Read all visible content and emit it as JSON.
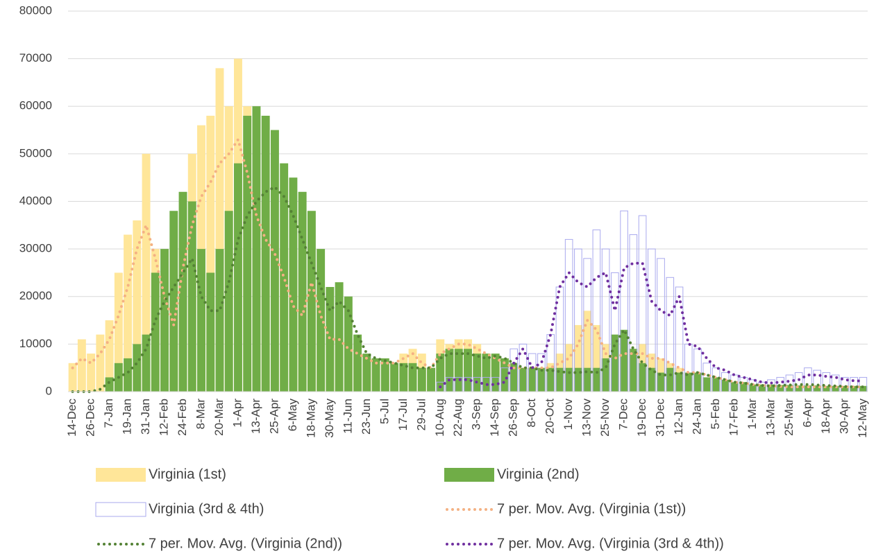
{
  "chart_data": {
    "type": "bar",
    "categories": [
      "14-Dec",
      null,
      "26-Dec",
      null,
      "7-Jan",
      null,
      "19-Jan",
      null,
      "31-Jan",
      null,
      "12-Feb",
      null,
      "24-Feb",
      null,
      "8-Mar",
      null,
      "20-Mar",
      null,
      "1-Apr",
      null,
      "13-Apr",
      null,
      "25-Apr",
      null,
      "6-May",
      null,
      "18-May",
      null,
      "30-May",
      null,
      "11-Jun",
      null,
      "23-Jun",
      null,
      "5-Jul",
      null,
      "17-Jul",
      null,
      "29-Jul",
      null,
      "10-Aug",
      null,
      "22-Aug",
      null,
      "3-Sep",
      null,
      "14-Sep",
      null,
      "26-Sep",
      null,
      "8-Oct",
      null,
      "20-Oct",
      null,
      "1-Nov",
      null,
      "13-Nov",
      null,
      "25-Nov",
      null,
      "7-Dec",
      null,
      "19-Dec",
      null,
      "31-Dec",
      null,
      "12-Jan",
      null,
      "24-Jan",
      null,
      "5-Feb",
      null,
      "17-Feb",
      null,
      "1-Mar",
      null,
      "13-Mar",
      null,
      "25-Mar",
      null,
      "6-Apr",
      null,
      "18-Apr",
      null,
      "30-Apr",
      null,
      "12-May"
    ],
    "series": [
      {
        "name": "Virginia (1st)",
        "kind": "bar",
        "color": "#ffe699",
        "values": [
          6000,
          11000,
          8000,
          12000,
          15000,
          25000,
          33000,
          36000,
          50000,
          30000,
          25000,
          18000,
          35000,
          50000,
          56000,
          58000,
          68000,
          60000,
          70000,
          60000,
          45000,
          40000,
          35000,
          30000,
          25000,
          20000,
          18000,
          15000,
          12000,
          11000,
          10000,
          8000,
          7000,
          6000,
          6000,
          6000,
          8000,
          9000,
          8000,
          5000,
          11000,
          10000,
          11000,
          11000,
          10000,
          8000,
          7000,
          7000,
          6000,
          5000,
          5000,
          5000,
          6000,
          8000,
          10000,
          14000,
          17000,
          14000,
          10000,
          8000,
          9000,
          9000,
          10000,
          8000,
          7000,
          6000,
          5000,
          4000,
          4000,
          3000,
          3000,
          2500,
          2000,
          2000,
          1500,
          1500,
          1200,
          1200,
          1000,
          1000,
          1000,
          1000,
          1000,
          1000,
          1000,
          1000,
          1000
        ]
      },
      {
        "name": "Virginia (2nd)",
        "kind": "bar",
        "color": "#70ad47",
        "values": [
          null,
          null,
          null,
          null,
          3000,
          6000,
          7000,
          10000,
          12000,
          25000,
          30000,
          38000,
          42000,
          40000,
          30000,
          25000,
          30000,
          38000,
          48000,
          58000,
          60000,
          58000,
          55000,
          48000,
          45000,
          42000,
          38000,
          30000,
          22000,
          23000,
          20000,
          12000,
          8000,
          7000,
          7000,
          6000,
          6000,
          6000,
          5000,
          5000,
          8000,
          9000,
          9000,
          9000,
          8000,
          8000,
          8000,
          7000,
          6000,
          5000,
          5000,
          5000,
          5000,
          5000,
          5000,
          5000,
          5000,
          5000,
          7000,
          12000,
          13000,
          9000,
          6000,
          5000,
          4000,
          5000,
          4000,
          4000,
          4000,
          3000,
          3000,
          2500,
          2000,
          2000,
          1500,
          1500,
          1500,
          1400,
          1400,
          1300,
          1300,
          1300,
          1200,
          1200,
          1200,
          1200,
          1200
        ]
      },
      {
        "name": "Virginia (3rd & 4th)",
        "kind": "outline",
        "color": "#a9a9ee",
        "values": [
          null,
          null,
          null,
          null,
          null,
          null,
          null,
          null,
          null,
          null,
          null,
          null,
          null,
          null,
          null,
          null,
          null,
          null,
          null,
          null,
          null,
          null,
          null,
          null,
          null,
          null,
          null,
          null,
          null,
          null,
          null,
          null,
          null,
          null,
          null,
          null,
          null,
          null,
          null,
          null,
          2000,
          3000,
          3000,
          3000,
          3000,
          3000,
          3000,
          5000,
          9000,
          10000,
          8000,
          8000,
          12000,
          22000,
          32000,
          30000,
          28000,
          34000,
          30000,
          25000,
          38000,
          33000,
          37000,
          30000,
          28000,
          24000,
          22000,
          10000,
          9000,
          6000,
          5000,
          4000,
          3500,
          3000,
          2500,
          2000,
          2500,
          3000,
          3500,
          4000,
          5000,
          4500,
          4000,
          3500,
          3000,
          3000,
          3000
        ]
      },
      {
        "name": "7 per. Mov. Avg. (Virginia (1st))",
        "kind": "line",
        "color": "#f4b183",
        "values": [
          5000,
          7000,
          6000,
          8000,
          11000,
          16000,
          22000,
          30000,
          35000,
          28000,
          20000,
          14000,
          26000,
          35000,
          41000,
          44000,
          48000,
          50000,
          53000,
          46000,
          37000,
          32000,
          29000,
          24000,
          18000,
          16000,
          23000,
          16000,
          11000,
          11000,
          9000,
          8000,
          7000,
          6000,
          6000,
          6000,
          7000,
          8000,
          6000,
          5000,
          8000,
          9000,
          10000,
          10000,
          9000,
          8000,
          7000,
          6000,
          5000,
          5000,
          5000,
          5000,
          5000,
          6000,
          7000,
          10000,
          15000,
          13000,
          8000,
          7000,
          8000,
          8000,
          8000,
          7000,
          7000,
          6000,
          5000,
          4000,
          4000,
          3500,
          3000,
          2500,
          2000,
          1800,
          1500,
          1300,
          1200,
          1100,
          1000,
          1000,
          1000,
          1000,
          1000,
          1000,
          1000,
          1000,
          1000
        ]
      },
      {
        "name": "7 per. Mov. Avg. (Virginia (2nd))",
        "kind": "line",
        "color": "#548235",
        "values": [
          0,
          0,
          0,
          500,
          2000,
          3000,
          4000,
          6000,
          9000,
          15000,
          19000,
          22000,
          25000,
          28000,
          20000,
          17000,
          17000,
          23000,
          32000,
          37000,
          40000,
          42000,
          43000,
          41000,
          37000,
          32000,
          27000,
          22000,
          17000,
          19000,
          17000,
          12000,
          8000,
          7000,
          6500,
          6000,
          5500,
          5000,
          5000,
          5000,
          7000,
          8000,
          8000,
          8000,
          7500,
          7000,
          7500,
          7000,
          6000,
          5000,
          5000,
          4500,
          4500,
          4200,
          4000,
          4000,
          4200,
          4000,
          5000,
          10000,
          13000,
          9000,
          6000,
          4500,
          3500,
          3500,
          4000,
          3500,
          4000,
          3500,
          3000,
          2500,
          2000,
          1800,
          1500,
          1300,
          1200,
          1300,
          1400,
          1500,
          1500,
          1400,
          1300,
          1200,
          1100,
          1000,
          1000
        ]
      },
      {
        "name": "7 per. Mov. Avg. (Virginia (3rd & 4th))",
        "kind": "line",
        "color": "#7030a0",
        "values": [
          null,
          null,
          null,
          null,
          null,
          null,
          null,
          null,
          null,
          null,
          null,
          null,
          null,
          null,
          null,
          null,
          null,
          null,
          null,
          null,
          null,
          null,
          null,
          null,
          null,
          null,
          null,
          null,
          null,
          null,
          null,
          null,
          null,
          null,
          null,
          null,
          null,
          null,
          null,
          null,
          1000,
          2500,
          2500,
          2500,
          2000,
          1500,
          1500,
          2000,
          6000,
          9000,
          5000,
          6000,
          12000,
          22000,
          25000,
          23000,
          22000,
          24000,
          25000,
          17000,
          26000,
          27000,
          27000,
          19000,
          17000,
          16000,
          20000,
          10000,
          9500,
          7000,
          5000,
          4500,
          3500,
          3000,
          2500,
          2000,
          1800,
          2000,
          2200,
          2500,
          3500,
          3500,
          3200,
          3000,
          2500,
          2300,
          2200
        ]
      }
    ],
    "ylim": [
      0,
      80000
    ],
    "yticks": [
      0,
      10000,
      20000,
      30000,
      40000,
      50000,
      60000,
      70000,
      80000
    ],
    "grid": true,
    "legend": "bottom"
  }
}
